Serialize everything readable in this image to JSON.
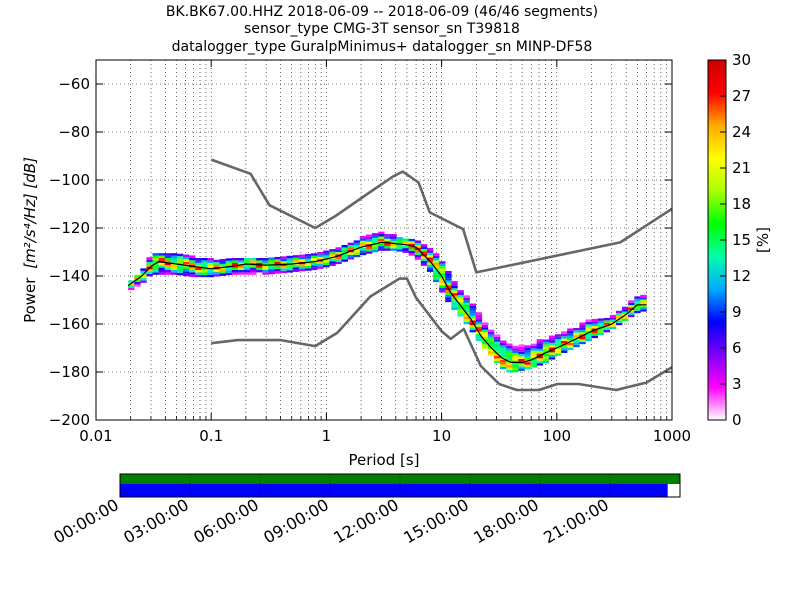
{
  "chart_data": {
    "type": "heatmap",
    "title_lines": [
      "BK.BK67.00.HHZ   2018-06-09 -- 2018-06-09  (46/46 segments)",
      "sensor_type CMG-3T sensor_sn T39818",
      "datalogger_type GuralpMinimus+ datalogger_sn MINP-DF58"
    ],
    "xlabel": "Period [s]",
    "ylabel_prefix": "Power",
    "ylabel_unit": "[m²/s⁴/Hz] [dB]",
    "xscale": "log",
    "xlim": [
      0.01,
      1000
    ],
    "ylim": [
      -200,
      -50
    ],
    "x_ticks": [
      {
        "v": 0.01,
        "label": "0.01"
      },
      {
        "v": 0.1,
        "label": "0.1"
      },
      {
        "v": 1,
        "label": "1"
      },
      {
        "v": 10,
        "label": "10"
      },
      {
        "v": 100,
        "label": "100"
      },
      {
        "v": 1000,
        "label": "1000"
      }
    ],
    "y_ticks": [
      {
        "v": -60,
        "label": "−60"
      },
      {
        "v": -80,
        "label": "−80"
      },
      {
        "v": -100,
        "label": "−100"
      },
      {
        "v": -120,
        "label": "−120"
      },
      {
        "v": -140,
        "label": "−140"
      },
      {
        "v": -160,
        "label": "−160"
      },
      {
        "v": -180,
        "label": "−180"
      },
      {
        "v": -200,
        "label": "−200"
      }
    ],
    "grid": true,
    "colorbar": {
      "label": "[%]",
      "range": [
        0,
        30
      ],
      "ticks": [
        {
          "v": 0,
          "label": "0"
        },
        {
          "v": 3,
          "label": "3"
        },
        {
          "v": 6,
          "label": "6"
        },
        {
          "v": 9,
          "label": "9"
        },
        {
          "v": 12,
          "label": "12"
        },
        {
          "v": 15,
          "label": "15"
        },
        {
          "v": 18,
          "label": "18"
        },
        {
          "v": 21,
          "label": "21"
        },
        {
          "v": 24,
          "label": "24"
        },
        {
          "v": 27,
          "label": "27"
        },
        {
          "v": 30,
          "label": "30"
        }
      ],
      "colors": [
        "#ffffff",
        "#ff00ff",
        "#7f00ff",
        "#0000ff",
        "#00aaff",
        "#00ffaa",
        "#00ff00",
        "#aaff00",
        "#ffff00",
        "#ffaa00",
        "#ff0000",
        "#cc0000"
      ]
    },
    "noise_model_high": [
      [
        0.1,
        -91.5
      ],
      [
        0.22,
        -97.4
      ],
      [
        0.32,
        -110.5
      ],
      [
        0.8,
        -120
      ],
      [
        1.2,
        -115
      ],
      [
        2.4,
        -105
      ],
      [
        3.8,
        -98.5
      ],
      [
        4.6,
        -96.5
      ],
      [
        6.3,
        -101
      ],
      [
        7.9,
        -113.5
      ],
      [
        15.4,
        -120.5
      ],
      [
        20,
        -138.5
      ],
      [
        354.8,
        -126
      ],
      [
        1000,
        -112
      ]
    ],
    "noise_model_low": [
      [
        0.1,
        -168
      ],
      [
        0.17,
        -166.7
      ],
      [
        0.4,
        -166.7
      ],
      [
        0.8,
        -169.2
      ],
      [
        1.24,
        -163.7
      ],
      [
        2.4,
        -148.6
      ],
      [
        4.3,
        -141.1
      ],
      [
        5,
        -141.1
      ],
      [
        6,
        -149
      ],
      [
        10,
        -163
      ],
      [
        12,
        -166.2
      ],
      [
        15.6,
        -162.1
      ],
      [
        21.9,
        -177.5
      ],
      [
        31.6,
        -185
      ],
      [
        45,
        -187.5
      ],
      [
        70,
        -187.5
      ],
      [
        101,
        -185
      ],
      [
        154,
        -185
      ],
      [
        328,
        -187.5
      ],
      [
        600,
        -184.4
      ],
      [
        1000,
        -178
      ]
    ],
    "mean_psd": [
      [
        0.019,
        -144
      ],
      [
        0.025,
        -140
      ],
      [
        0.03,
        -136
      ],
      [
        0.035,
        -134
      ],
      [
        0.05,
        -135
      ],
      [
        0.07,
        -136
      ],
      [
        0.1,
        -137
      ],
      [
        0.15,
        -136
      ],
      [
        0.2,
        -135
      ],
      [
        0.3,
        -135.5
      ],
      [
        0.5,
        -135
      ],
      [
        0.8,
        -134
      ],
      [
        1.2,
        -132
      ],
      [
        2,
        -128
      ],
      [
        3,
        -126
      ],
      [
        4,
        -126.5
      ],
      [
        5,
        -127
      ],
      [
        6,
        -128
      ],
      [
        8,
        -134
      ],
      [
        10,
        -140
      ],
      [
        12,
        -147
      ],
      [
        15,
        -153
      ],
      [
        18,
        -158
      ],
      [
        22,
        -165
      ],
      [
        27,
        -170
      ],
      [
        33,
        -174
      ],
      [
        40,
        -176
      ],
      [
        50,
        -176
      ],
      [
        60,
        -175
      ],
      [
        80,
        -172
      ],
      [
        100,
        -170
      ],
      [
        150,
        -166
      ],
      [
        200,
        -163
      ],
      [
        300,
        -160
      ],
      [
        400,
        -156
      ],
      [
        500,
        -152
      ],
      [
        600,
        -152
      ]
    ],
    "distribution_band": [
      [
        0.019,
        -146,
        -143
      ],
      [
        0.025,
        -143,
        -138
      ],
      [
        0.03,
        -139,
        -131
      ],
      [
        0.035,
        -139,
        -130
      ],
      [
        0.05,
        -139,
        -131
      ],
      [
        0.07,
        -140,
        -132
      ],
      [
        0.1,
        -140,
        -133
      ],
      [
        0.15,
        -139,
        -133
      ],
      [
        0.2,
        -139,
        -133
      ],
      [
        0.3,
        -139,
        -133
      ],
      [
        0.5,
        -138,
        -132
      ],
      [
        0.8,
        -137,
        -131
      ],
      [
        1.2,
        -135,
        -129
      ],
      [
        2,
        -131,
        -124
      ],
      [
        3,
        -129,
        -122
      ],
      [
        4,
        -129,
        -123
      ],
      [
        5,
        -130,
        -124
      ],
      [
        6,
        -132,
        -125
      ],
      [
        8,
        -138,
        -128
      ],
      [
        10,
        -146,
        -133
      ],
      [
        12,
        -152,
        -140
      ],
      [
        15,
        -157,
        -146
      ],
      [
        18,
        -162,
        -150
      ],
      [
        22,
        -168,
        -156
      ],
      [
        27,
        -173,
        -161
      ],
      [
        33,
        -178,
        -166
      ],
      [
        40,
        -180,
        -168
      ],
      [
        50,
        -179,
        -169
      ],
      [
        60,
        -178,
        -168
      ],
      [
        80,
        -176,
        -166
      ],
      [
        100,
        -173,
        -164
      ],
      [
        150,
        -169,
        -161
      ],
      [
        200,
        -166,
        -158
      ],
      [
        300,
        -162,
        -157
      ],
      [
        400,
        -158,
        -152
      ],
      [
        500,
        -155,
        -149
      ],
      [
        600,
        -154,
        -148
      ]
    ],
    "time_coverage": {
      "ticks": [
        "00:00:00",
        "03:00:00",
        "06:00:00",
        "09:00:00",
        "12:00:00",
        "15:00:00",
        "18:00:00",
        "21:00:00"
      ],
      "data_coverage_fraction": 1.0,
      "psd_coverage_fraction": 0.978,
      "data_color": "#008000",
      "psd_color": "#0000ff"
    },
    "line_colors": {
      "noise_models": "#666666",
      "mean": "#000000"
    }
  }
}
